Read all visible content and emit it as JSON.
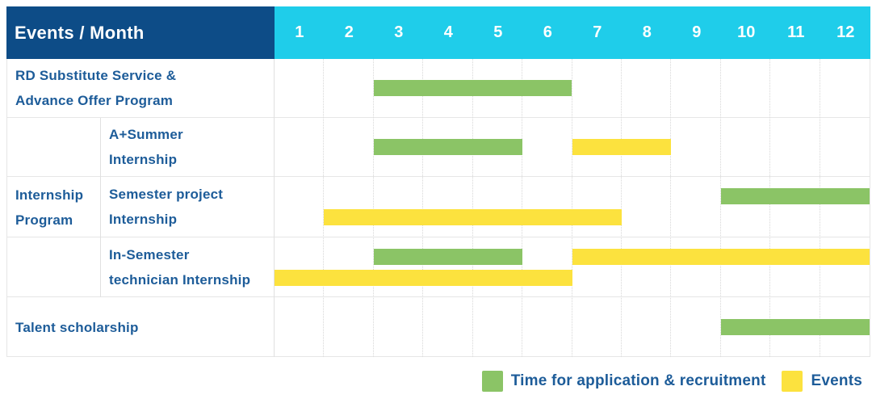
{
  "title": "Events / Month",
  "colors": {
    "navy": "#0d4c87",
    "cyan": "#1fcdea",
    "green": "#8bc466",
    "yellow": "#fce23e",
    "blue": "#1d5c99"
  },
  "chart_data": {
    "type": "gantt",
    "title": "Events / Month",
    "x_axis": {
      "unit": "month",
      "ticks": [
        "1",
        "2",
        "3",
        "4",
        "5",
        "6",
        "7",
        "8",
        "9",
        "10",
        "11",
        "12"
      ],
      "range": [
        1,
        12
      ]
    },
    "legend": [
      {
        "series": "Time for application & recruitment",
        "color": "#8bc466"
      },
      {
        "series": "Events",
        "color": "#fce23e"
      }
    ],
    "rows": [
      {
        "label": "RD Substitute Service & Advance Offer Program",
        "label_lines": [
          "RD Substitute Service &",
          "Advance Offer Program"
        ],
        "group": null,
        "lines": [
          [
            {
              "series": "Time for application & recruitment",
              "color_key": "green",
              "start_month": 3,
              "end_month": 6
            }
          ]
        ]
      },
      {
        "label": "A+Summer Internship",
        "label_lines": [
          "A+Summer",
          "Internship"
        ],
        "group": "Internship Program",
        "lines": [
          [
            {
              "series": "Time for application & recruitment",
              "color_key": "green",
              "start_month": 3,
              "end_month": 5
            },
            {
              "series": "Events",
              "color_key": "yellow",
              "start_month": 7,
              "end_month": 8
            }
          ]
        ]
      },
      {
        "label": "Semester project Internship",
        "label_lines": [
          "Semester project",
          "Internship"
        ],
        "group": "Internship Program",
        "lines": [
          [
            {
              "series": "Time for application & recruitment",
              "color_key": "green",
              "start_month": 10,
              "end_month": 12
            }
          ],
          [
            {
              "series": "Events",
              "color_key": "yellow",
              "start_month": 2,
              "end_month": 7
            }
          ]
        ]
      },
      {
        "label": "In-Semester technician Internship",
        "label_lines": [
          "In-Semester",
          "technician Internship"
        ],
        "group": "Internship Program",
        "lines": [
          [
            {
              "series": "Time for application & recruitment",
              "color_key": "green",
              "start_month": 3,
              "end_month": 5
            },
            {
              "series": "Events",
              "color_key": "yellow",
              "start_month": 7,
              "end_month": 12
            }
          ],
          [
            {
              "series": "Events",
              "color_key": "yellow",
              "start_month": 1,
              "end_month": 6
            }
          ]
        ]
      },
      {
        "label": "Talent scholarship",
        "label_lines": [
          "Talent scholarship"
        ],
        "group": null,
        "lines": [
          [
            {
              "series": "Time for application & recruitment",
              "color_key": "green",
              "start_month": 10,
              "end_month": 12
            }
          ]
        ]
      }
    ],
    "group_labels": [
      {
        "label": "Internship Program",
        "label_lines": [
          "Internship",
          "Program"
        ],
        "row_span": [
          2,
          4
        ]
      }
    ]
  },
  "legend": {
    "items": [
      {
        "label": "Time for application & recruitment",
        "color_key": "green"
      },
      {
        "label": "Events",
        "color_key": "yellow"
      }
    ]
  }
}
